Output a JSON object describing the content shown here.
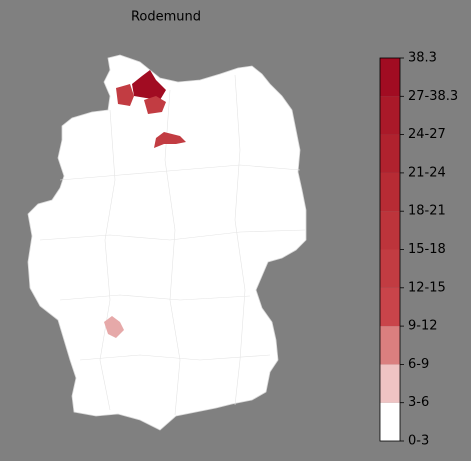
{
  "title": "Rodemund",
  "colorbar": {
    "tick_labels": [
      "0-3",
      "3-6",
      "6-9",
      "9-12",
      "12-15",
      "15-18",
      "18-21",
      "21-24",
      "24-27",
      "27-38.3",
      "38.3"
    ],
    "colors": [
      "#ffffff",
      "#efc3c3",
      "#da7f7f",
      "#c9444a",
      "#c23c42",
      "#bd343b",
      "#b72b34",
      "#b0222e",
      "#aa1929",
      "#a10c22"
    ]
  }
}
